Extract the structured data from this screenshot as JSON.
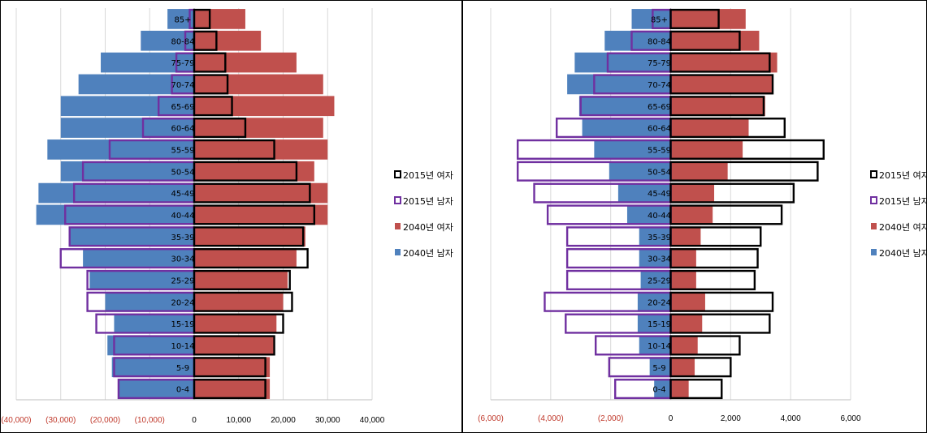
{
  "chart_data": [
    {
      "type": "bar",
      "categories": [
        "0-4",
        "5-9",
        "10-14",
        "15-19",
        "20-24",
        "25-29",
        "30-34",
        "35-39",
        "40-44",
        "45-49",
        "50-54",
        "55-59",
        "60-64",
        "65-69",
        "70-74",
        "75-79",
        "80-84",
        "85+"
      ],
      "xlim": [
        -40000,
        40000
      ],
      "x_ticks": [
        -40000,
        -30000,
        -20000,
        -10000,
        0,
        10000,
        20000,
        30000,
        40000
      ],
      "x_tick_labels": [
        "(40,000)",
        "(30,000)",
        "(20,000)",
        "(10,000)",
        "0",
        "10,000",
        "20,000",
        "30,000",
        "40,000"
      ],
      "series": [
        {
          "name": "2015년 여자",
          "values": [
            16000,
            16000,
            18000,
            20000,
            22000,
            21500,
            25500,
            24500,
            27000,
            26000,
            23000,
            18000,
            11500,
            8500,
            7500,
            7000,
            5000,
            3500
          ]
        },
        {
          "name": "2015년 남자",
          "values": [
            -17000,
            -18000,
            -18000,
            -22000,
            -24000,
            -24000,
            -30000,
            -28000,
            -29000,
            -27000,
            -25000,
            -19000,
            -11500,
            -8000,
            -5000,
            -4000,
            -2000,
            -1000
          ]
        },
        {
          "name": "2040년 여자",
          "values": [
            17000,
            17000,
            18000,
            18500,
            20000,
            21000,
            23000,
            25000,
            30000,
            30000,
            27000,
            30000,
            29000,
            31500,
            29000,
            23000,
            15000,
            11500
          ]
        },
        {
          "name": "2040년 남자",
          "values": [
            -17000,
            -18500,
            -19500,
            -18000,
            -20000,
            -23500,
            -25000,
            -28000,
            -35500,
            -35000,
            -30000,
            -33000,
            -30000,
            -30000,
            -26000,
            -21000,
            -12000,
            -6000
          ]
        }
      ],
      "legend_position": "right"
    },
    {
      "type": "bar",
      "categories": [
        "0-4",
        "5-9",
        "10-14",
        "15-19",
        "20-24",
        "25-29",
        "30-34",
        "35-39",
        "40-44",
        "45-49",
        "50-54",
        "55-59",
        "60-64",
        "65-69",
        "70-74",
        "75-79",
        "80-84",
        "85+"
      ],
      "xlim": [
        -6000,
        6000
      ],
      "x_ticks": [
        -6000,
        -4000,
        -2000,
        0,
        2000,
        4000,
        6000
      ],
      "x_tick_labels": [
        "(6,000)",
        "(4,000)",
        "(2,000)",
        "0",
        "2,000",
        "4,000",
        "6,000"
      ],
      "series": [
        {
          "name": "2015년 여자",
          "values": [
            1700,
            2000,
            2300,
            3300,
            3400,
            2800,
            2900,
            3000,
            3700,
            4100,
            4900,
            5100,
            3800,
            3100,
            3400,
            3300,
            2300,
            1600
          ]
        },
        {
          "name": "2015년 남자",
          "values": [
            -1850,
            -2050,
            -2500,
            -3500,
            -4200,
            -3450,
            -3450,
            -3450,
            -4100,
            -4550,
            -5100,
            -5100,
            -3800,
            -3000,
            -2550,
            -2100,
            -1300,
            -600
          ]
        },
        {
          "name": "2040년 여자",
          "values": [
            600,
            800,
            900,
            1050,
            1150,
            850,
            850,
            1000,
            1400,
            1450,
            1900,
            2400,
            2600,
            3150,
            3400,
            3550,
            2950,
            2500
          ]
        },
        {
          "name": "2040년 남자",
          "values": [
            -550,
            -700,
            -1050,
            -1100,
            -1100,
            -1000,
            -1050,
            -1050,
            -1450,
            -1750,
            -2050,
            -2550,
            -2950,
            -3050,
            -3450,
            -3200,
            -2200,
            -1300
          ]
        }
      ],
      "legend_position": "right"
    }
  ],
  "legend": [
    {
      "label": "2015년 여자",
      "swatch": "#000000",
      "style": "outline"
    },
    {
      "label": "2015년 남자",
      "swatch": "#7030a0",
      "style": "outline"
    },
    {
      "label": "2040년 여자",
      "swatch": "#c0504d",
      "style": "fill"
    },
    {
      "label": "2040년 남자",
      "swatch": "#4f81bd",
      "style": "fill"
    }
  ],
  "colors": {
    "female_2040": "#c0504d",
    "male_2040": "#4f81bd",
    "female_2015_outline": "#000000",
    "male_2015_outline": "#7030a0",
    "negative_tick": "#c0392b",
    "grid": "#d9d9d9"
  }
}
